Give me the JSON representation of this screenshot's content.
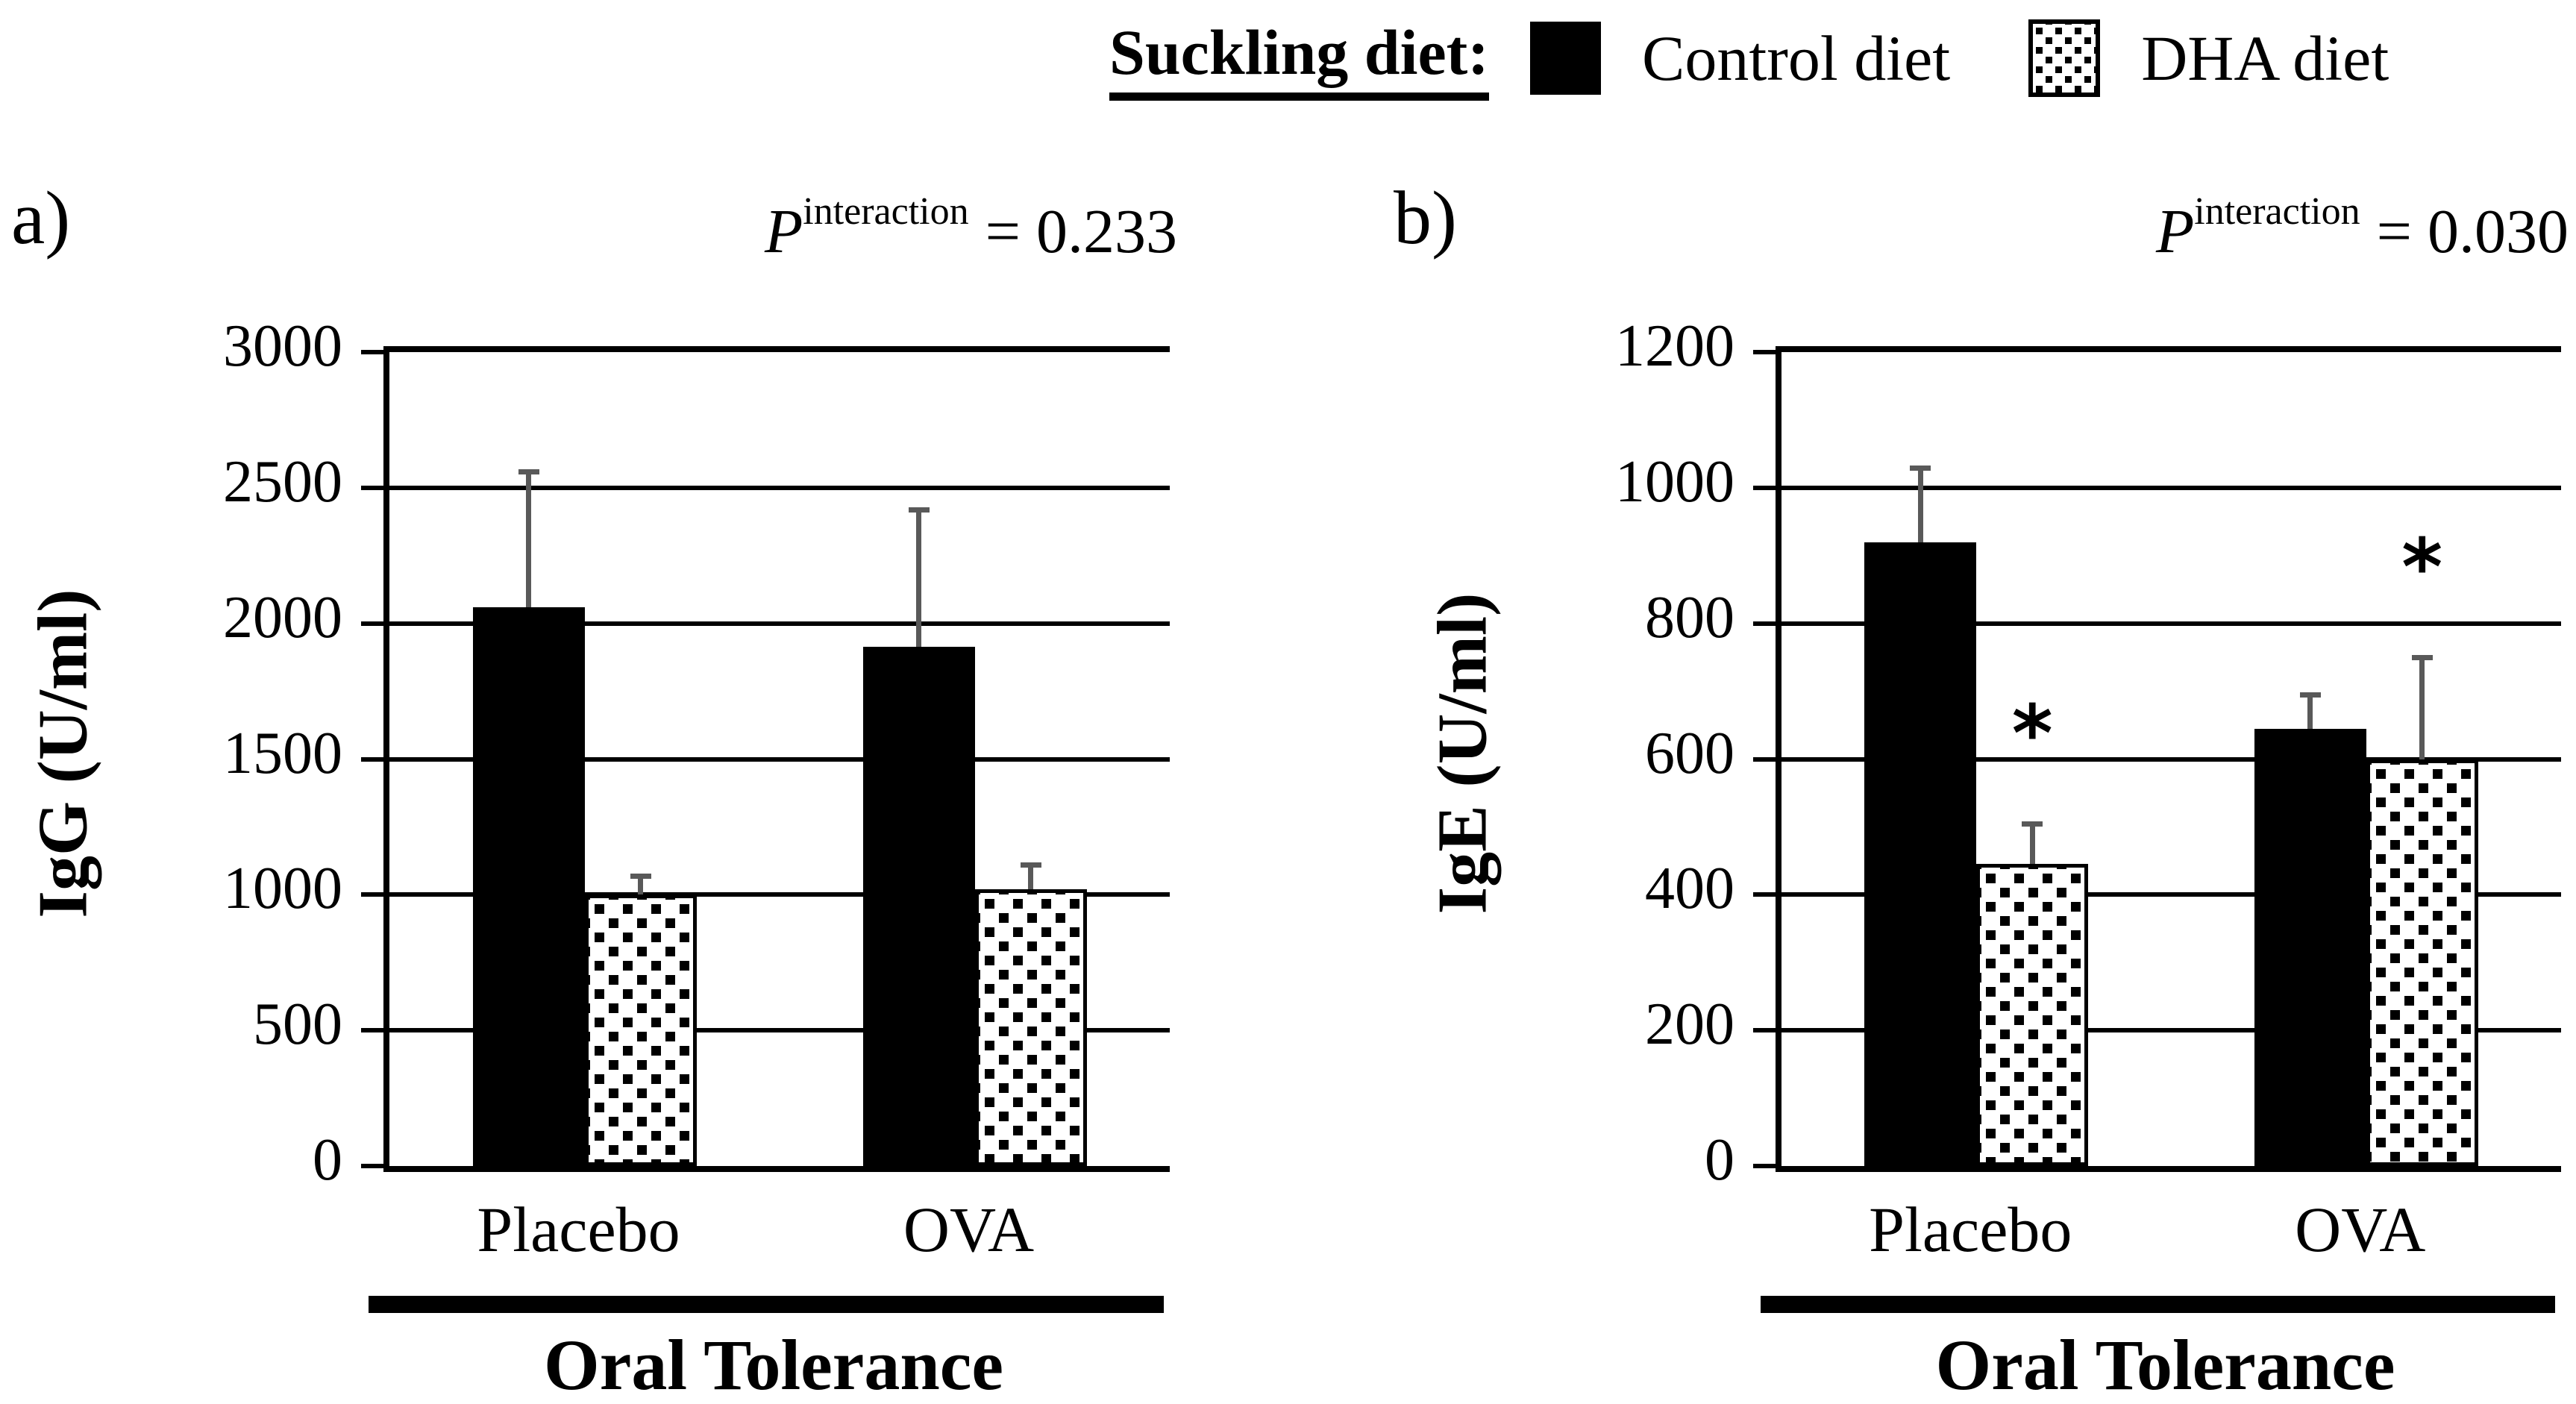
{
  "legend": {
    "title": "Suckling diet:",
    "items": [
      {
        "label": "Control diet",
        "swatch": "solid-black"
      },
      {
        "label": "DHA diet",
        "swatch": "dotted"
      }
    ]
  },
  "colors": {
    "bar_black": "#000000",
    "bar_dotted_bg": "#ffffff",
    "error_bar_gray": "#595959",
    "text": "#000000",
    "background": "#ffffff"
  },
  "chart_data": [
    {
      "id": "a",
      "type": "bar",
      "panel_label": "a)",
      "annotation": {
        "p_label": "P",
        "p_sup": "interaction",
        "p_value": "= 0.233"
      },
      "ylabel": "IgG (U/ml)",
      "xlabel": "Oral Tolerance",
      "categories": [
        "Placebo",
        "OVA"
      ],
      "series": [
        {
          "name": "Control diet",
          "pattern": "solid-black",
          "values": [
            2060,
            1915
          ],
          "errors_up": [
            500,
            505
          ]
        },
        {
          "name": "DHA diet",
          "pattern": "dotted",
          "values": [
            1000,
            1020
          ],
          "errors_up": [
            70,
            90
          ]
        }
      ],
      "sig_markers": [],
      "ylim": [
        0,
        3000
      ],
      "ytick_step": 500,
      "yticks": [
        "0",
        "500",
        "1000",
        "1500",
        "2000",
        "2500",
        "3000"
      ],
      "grid": true,
      "legend_position": "top"
    },
    {
      "id": "b",
      "type": "bar",
      "panel_label": "b)",
      "annotation": {
        "p_label": "P",
        "p_sup": "interaction",
        "p_value": "= 0.030"
      },
      "ylabel": "IgE (U/ml)",
      "xlabel": "Oral Tolerance",
      "categories": [
        "Placebo",
        "OVA"
      ],
      "series": [
        {
          "name": "Control diet",
          "pattern": "solid-black",
          "values": [
            920,
            645
          ],
          "errors_up": [
            110,
            50
          ]
        },
        {
          "name": "DHA diet",
          "pattern": "dotted",
          "values": [
            445,
            600
          ],
          "errors_up": [
            60,
            150
          ]
        }
      ],
      "sig_markers": [
        {
          "series": "DHA diet",
          "category": "Placebo",
          "symbol": "*"
        },
        {
          "series": "DHA diet",
          "category": "OVA",
          "symbol": "*"
        }
      ],
      "ylim": [
        0,
        1200
      ],
      "ytick_step": 200,
      "yticks": [
        "0",
        "200",
        "400",
        "600",
        "800",
        "1000",
        "1200"
      ],
      "grid": true,
      "legend_position": "top"
    }
  ]
}
